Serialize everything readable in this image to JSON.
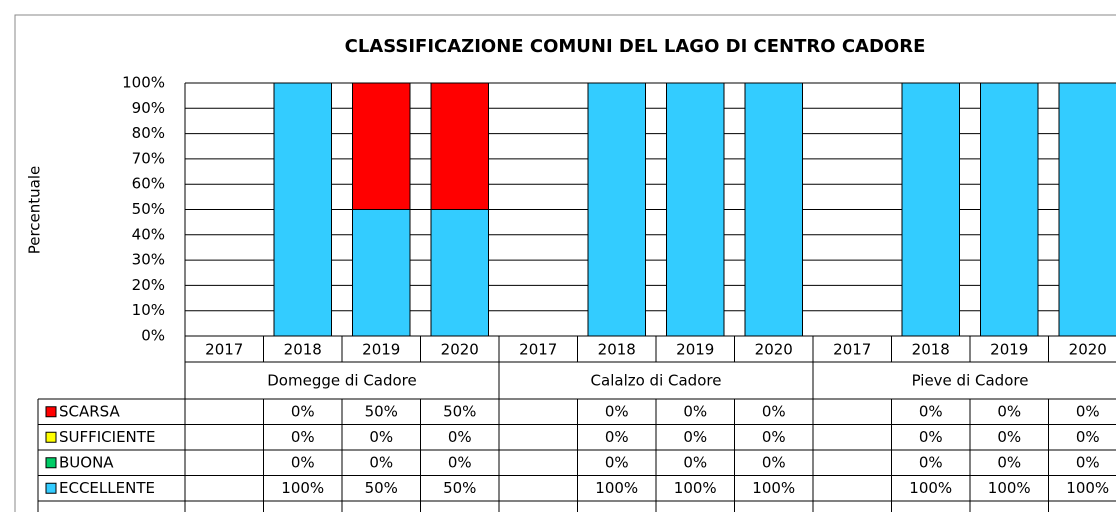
{
  "chart_data": {
    "type": "stacked_bar",
    "title": "CLASSIFICAZIONE COMUNI DEL LAGO DI CENTRO CADORE",
    "y_label": "Percentuale",
    "categories": [
      "2017",
      "2018",
      "2019",
      "2020",
      "2017",
      "2018",
      "2019",
      "2020",
      "2017",
      "2018",
      "2019",
      "2020"
    ],
    "groups": [
      "Domegge di Cadore",
      "Calalzo di Cadore",
      "Pieve di Cadore"
    ],
    "series": [
      {
        "name": "SCARSA",
        "color": "#ff0000",
        "values": [
          null,
          0,
          50,
          50,
          null,
          0,
          0,
          0,
          null,
          0,
          0,
          0
        ],
        "value_labels": [
          null,
          "0%",
          "50%",
          "50%",
          null,
          "0%",
          "0%",
          "0%",
          null,
          "0%",
          "0%",
          "0%"
        ]
      },
      {
        "name": "SUFFICIENTE",
        "color": "#ffff00",
        "values": [
          null,
          0,
          0,
          0,
          null,
          0,
          0,
          0,
          null,
          0,
          0,
          0
        ],
        "value_labels": [
          null,
          "0%",
          "0%",
          "0%",
          null,
          "0%",
          "0%",
          "0%",
          null,
          "0%",
          "0%",
          "0%"
        ]
      },
      {
        "name": "BUONA",
        "color": "#00cc66",
        "values": [
          null,
          0,
          0,
          0,
          null,
          0,
          0,
          0,
          null,
          0,
          0,
          0
        ],
        "value_labels": [
          null,
          "0%",
          "0%",
          "0%",
          null,
          "0%",
          "0%",
          "0%",
          null,
          "0%",
          "0%",
          "0%"
        ]
      },
      {
        "name": "ECCELLENTE",
        "color": "#33ccff",
        "values": [
          null,
          100,
          50,
          50,
          null,
          100,
          100,
          100,
          null,
          100,
          100,
          100
        ],
        "value_labels": [
          null,
          "100%",
          "50%",
          "50%",
          null,
          "100%",
          "100%",
          "100%",
          null,
          "100%",
          "100%",
          "100%"
        ]
      }
    ],
    "ylim": [
      0,
      100
    ],
    "yticks": [
      {
        "value": 0,
        "label": "0%"
      },
      {
        "value": 10,
        "label": "10%"
      },
      {
        "value": 20,
        "label": "20%"
      },
      {
        "value": 30,
        "label": "30%"
      },
      {
        "value": 40,
        "label": "40%"
      },
      {
        "value": 50,
        "label": "50%"
      },
      {
        "value": 60,
        "label": "60%"
      },
      {
        "value": 70,
        "label": "70%"
      },
      {
        "value": 80,
        "label": "80%"
      },
      {
        "value": 90,
        "label": "90%"
      },
      {
        "value": 100,
        "label": "100%"
      }
    ],
    "grid": true
  }
}
